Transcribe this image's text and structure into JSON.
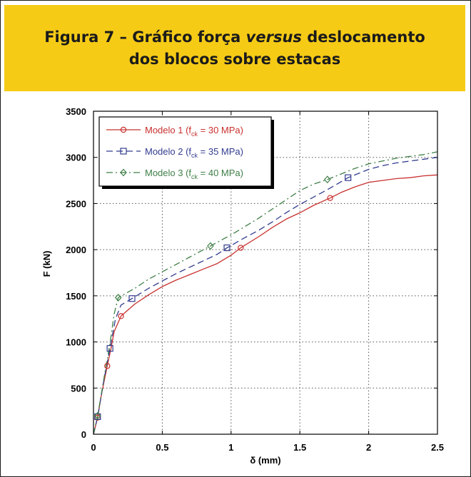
{
  "figure": {
    "title_line1_a": "Figura 7 – Gráfico força ",
    "title_line1_b": "versus",
    "title_line1_c": " deslocamento",
    "title_line2": "dos blocos sobre estacas",
    "banner_color": "#f6cb16"
  },
  "chart_data": {
    "type": "line",
    "xlabel": "δ (mm)",
    "ylabel": "F (kN)",
    "xlim": [
      0,
      2.5
    ],
    "ylim": [
      0,
      3500
    ],
    "xticks": [
      "0",
      "0.5",
      "1",
      "1.5",
      "2",
      "2.5"
    ],
    "yticks": [
      "0",
      "500",
      "1000",
      "1500",
      "2000",
      "2500",
      "3000",
      "3500"
    ],
    "grid": true,
    "legend_position": "top-left",
    "series": [
      {
        "name_prefix": "Modelo 1 (f",
        "name_sub": "ck",
        "name_suffix": " = 30 MPa)",
        "color": "#c8312f",
        "marker": "circle",
        "dash": "solid",
        "x": [
          0,
          0.03,
          0.06,
          0.1,
          0.13,
          0.15,
          0.2,
          0.3,
          0.4,
          0.5,
          0.6,
          0.7,
          0.8,
          0.9,
          1.0,
          1.07,
          1.2,
          1.3,
          1.4,
          1.5,
          1.6,
          1.72,
          1.8,
          1.9,
          2.0,
          2.1,
          2.2,
          2.3,
          2.4,
          2.5
        ],
        "y": [
          0,
          180,
          450,
          740,
          950,
          1110,
          1280,
          1410,
          1510,
          1600,
          1670,
          1730,
          1790,
          1850,
          1940,
          2020,
          2140,
          2240,
          2330,
          2400,
          2480,
          2560,
          2620,
          2680,
          2730,
          2750,
          2770,
          2780,
          2800,
          2810
        ],
        "marker_x": [
          0.03,
          0.1,
          0.2,
          1.07,
          1.72
        ],
        "marker_y": [
          180,
          740,
          1280,
          2020,
          2560
        ]
      },
      {
        "name_prefix": "Modelo 2 (f",
        "name_sub": "ck",
        "name_suffix": " = 35 MPa)",
        "color": "#333c8f",
        "marker": "square",
        "dash": "dash",
        "x": [
          0,
          0.03,
          0.08,
          0.12,
          0.16,
          0.2,
          0.28,
          0.4,
          0.5,
          0.6,
          0.7,
          0.8,
          0.9,
          0.97,
          1.1,
          1.2,
          1.3,
          1.4,
          1.5,
          1.6,
          1.7,
          1.85,
          2.0,
          2.1,
          2.2,
          2.3,
          2.4,
          2.5
        ],
        "y": [
          0,
          190,
          620,
          930,
          1250,
          1400,
          1470,
          1580,
          1660,
          1740,
          1810,
          1880,
          1950,
          2020,
          2130,
          2210,
          2300,
          2400,
          2490,
          2570,
          2650,
          2780,
          2870,
          2910,
          2940,
          2960,
          2980,
          3000
        ],
        "marker_x": [
          0.03,
          0.12,
          0.28,
          0.97,
          1.85
        ],
        "marker_y": [
          190,
          930,
          1470,
          2020,
          2780
        ]
      },
      {
        "name_prefix": "Modelo 3 (f",
        "name_sub": "ck",
        "name_suffix": " = 40 MPa)",
        "color": "#3f7f47",
        "marker": "diamond",
        "dash": "dashdot",
        "x": [
          0,
          0.03,
          0.08,
          0.12,
          0.15,
          0.18,
          0.3,
          0.4,
          0.5,
          0.6,
          0.7,
          0.85,
          1.0,
          1.1,
          1.2,
          1.3,
          1.4,
          1.5,
          1.6,
          1.7,
          1.8,
          1.9,
          2.0,
          2.1,
          2.2,
          2.3,
          2.4,
          2.5
        ],
        "y": [
          0,
          200,
          640,
          980,
          1300,
          1480,
          1580,
          1680,
          1760,
          1840,
          1920,
          2040,
          2160,
          2250,
          2340,
          2440,
          2540,
          2640,
          2710,
          2760,
          2820,
          2880,
          2930,
          2960,
          2990,
          3010,
          3030,
          3060
        ],
        "marker_x": [
          0.03,
          0.18,
          0.85,
          1.7
        ],
        "marker_y": [
          200,
          1480,
          2040,
          2760
        ]
      }
    ]
  }
}
